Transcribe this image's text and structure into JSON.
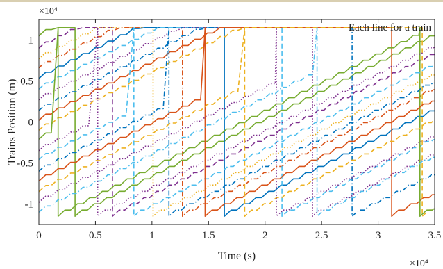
{
  "chart_data": {
    "type": "line",
    "xlabel": "Time (s)",
    "ylabel": "Trains Position (m)",
    "x_exponent_label": "×10⁴",
    "y_exponent_label": "×10⁴",
    "annotation": "Each line for a train",
    "xlim": [
      0,
      35000
    ],
    "ylim": [
      -12500,
      12500
    ],
    "x_scale_factor": 10000,
    "y_scale_factor": 10000,
    "xticks": [
      0,
      5000,
      10000,
      15000,
      20000,
      25000,
      30000,
      35000
    ],
    "xtick_labels": [
      "0",
      "0.5",
      "1",
      "1.5",
      "2",
      "2.5",
      "3",
      "3.5"
    ],
    "yticks": [
      -10000,
      -5000,
      0,
      5000,
      10000
    ],
    "ytick_labels": [
      "-1",
      "-0.5",
      "0",
      "0.5",
      "1"
    ],
    "grid": false,
    "box": true,
    "position_range": [
      -11500,
      11500
    ],
    "cycle_period_s": 32000,
    "series_color_cycle": [
      "#0072BD",
      "#D95319",
      "#EDB120",
      "#7E2F8E",
      "#77AC30",
      "#4DBEEE"
    ],
    "series_style_cycle": [
      "solid",
      "dash-dot",
      "dotted",
      "dashed"
    ],
    "series": [
      {
        "start_position": 10500,
        "wrap_time": 3200,
        "color": "#77AC30",
        "style": "solid"
      },
      {
        "start_position": 9000,
        "wrap_time": 6500,
        "color": "#7E2F8E",
        "style": "dashed"
      },
      {
        "start_position": 7700,
        "wrap_time": 10100,
        "color": "#EDB120",
        "style": "dotted"
      },
      {
        "start_position": 6600,
        "wrap_time": 12700,
        "color": "#D95319",
        "style": "dash-dot"
      },
      {
        "start_position": 5300,
        "wrap_time": 16400,
        "color": "#0072BD",
        "style": "solid"
      },
      {
        "start_position": 4000,
        "wrap_time": 21500,
        "color": "#4DBEEE",
        "style": "dashed"
      },
      {
        "start_position": 2700,
        "wrap_time": 24200,
        "color": "#7E2F8E",
        "style": "dotted"
      },
      {
        "start_position": 1400,
        "wrap_time": 27700,
        "color": "#0072BD",
        "style": "dash-dot"
      },
      {
        "start_position": 200,
        "wrap_time": 31200,
        "color": "#D95319",
        "style": "solid"
      },
      {
        "start_position": -1000,
        "wrap_time": 33900,
        "color": "#EDB120",
        "style": "dashed"
      },
      {
        "start_position": -2100,
        "wrap_time": 1700,
        "color": "#77AC30",
        "style": "solid"
      },
      {
        "start_position": -3500,
        "wrap_time": 5200,
        "color": "#7E2F8E",
        "style": "dotted"
      },
      {
        "start_position": -4600,
        "wrap_time": 8400,
        "color": "#4DBEEE",
        "style": "dashed"
      },
      {
        "start_position": -6000,
        "wrap_time": 11500,
        "color": "#0072BD",
        "style": "dash-dot"
      },
      {
        "start_position": -7200,
        "wrap_time": 14700,
        "color": "#D95319",
        "style": "solid"
      },
      {
        "start_position": -8500,
        "wrap_time": 18200,
        "color": "#EDB120",
        "style": "dashed"
      },
      {
        "start_position": -9800,
        "wrap_time": 21000,
        "color": "#7E2F8E",
        "style": "dotted"
      },
      {
        "start_position": -11000,
        "wrap_time": 24600,
        "color": "#4DBEEE",
        "style": "dash-dot"
      }
    ]
  }
}
